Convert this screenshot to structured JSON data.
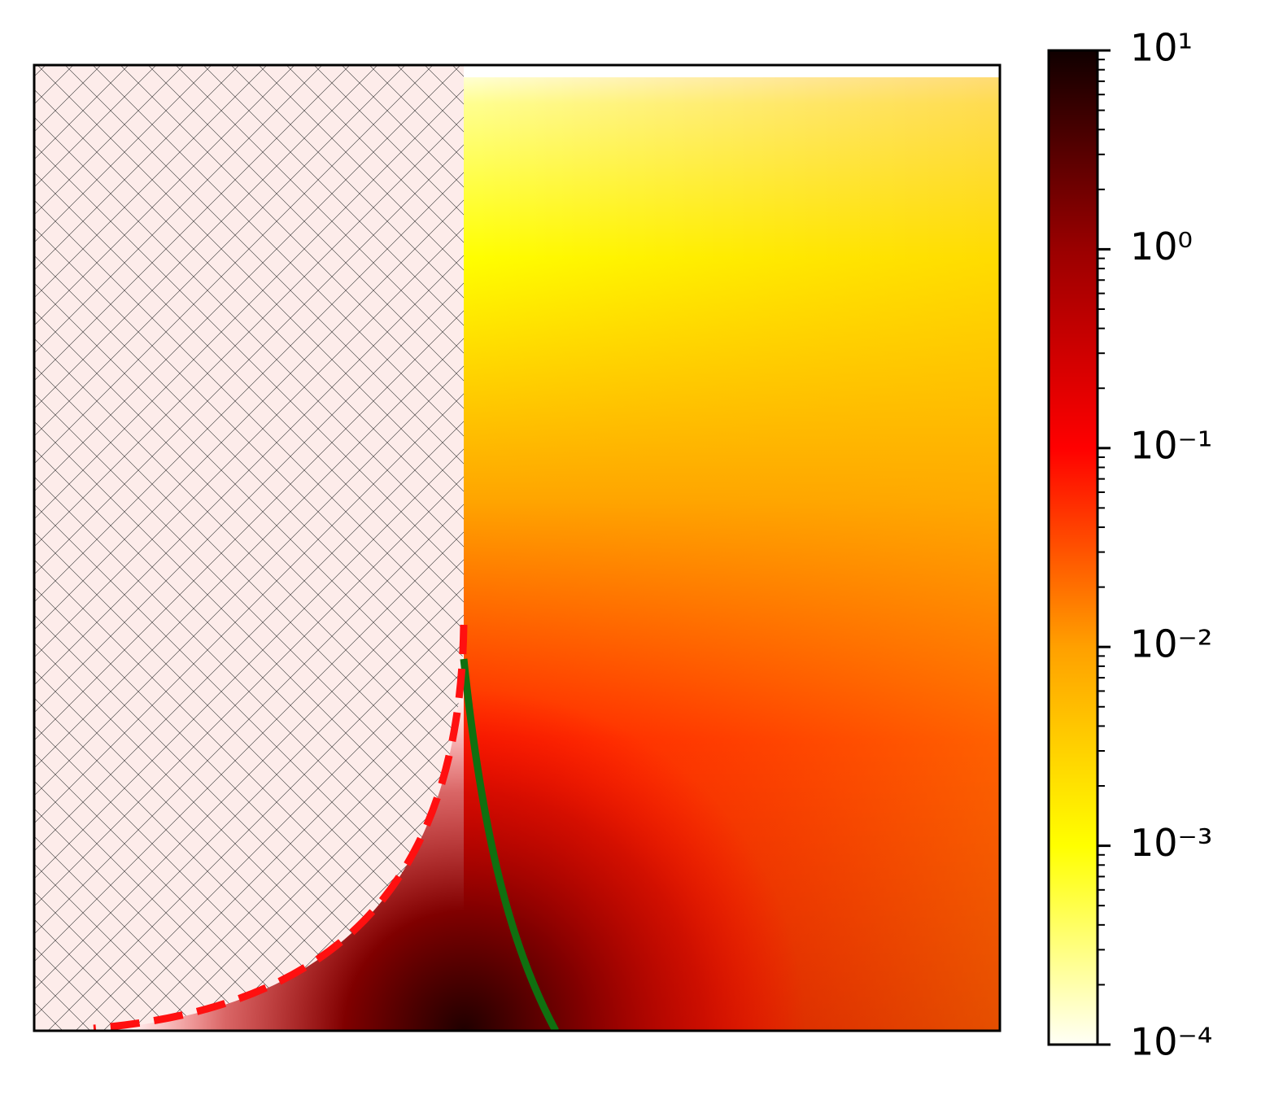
{
  "chart_data": {
    "type": "heatmap",
    "colorbar": {
      "scale": "log",
      "lim": [
        0.0001,
        10
      ],
      "ticks": [
        {
          "value": 0.0001,
          "label": "10⁻⁴"
        },
        {
          "value": 0.001,
          "label": "10⁻³"
        },
        {
          "value": 0.01,
          "label": "10⁻²"
        },
        {
          "value": 0.1,
          "label": "10⁻¹"
        },
        {
          "value": 1,
          "label": "10⁰"
        },
        {
          "value": 10,
          "label": "10¹"
        }
      ],
      "minor_ticks": true,
      "colormap": [
        "#fffff6",
        "#ffff00",
        "#ffa000",
        "#ff0000",
        "#9a0000",
        "#100000"
      ]
    }
  }
}
